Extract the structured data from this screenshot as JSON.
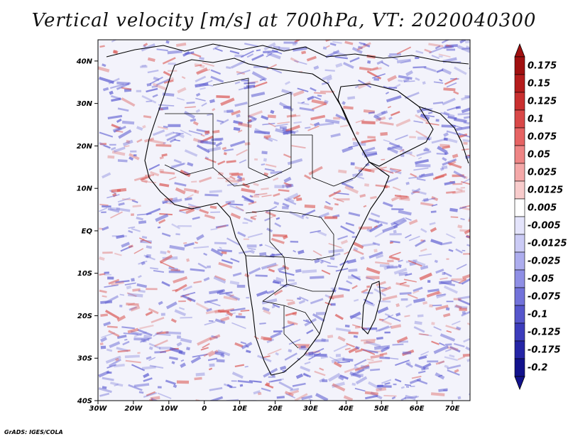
{
  "title": "Vertical velocity [m/s] at 700hPa, VT: 2020040300",
  "credit": "GrADS: IGES/COLA",
  "map": {
    "lon_range": [
      -30,
      75
    ],
    "lat_range": [
      -40,
      45
    ],
    "lat_ticks": [
      "40N",
      "30N",
      "20N",
      "10N",
      "EQ",
      "10S",
      "20S",
      "30S",
      "40S"
    ],
    "lon_ticks": [
      "30W",
      "20W",
      "10W",
      "0",
      "10E",
      "20E",
      "30E",
      "40E",
      "50E",
      "60E",
      "70E"
    ],
    "field_colors": {
      "ascent": "#d9534f",
      "descent": "#5a5ad0",
      "neutral": "#f3f3fb"
    }
  },
  "colorbar": {
    "labels": [
      "0.175",
      "0.15",
      "0.125",
      "0.1",
      "0.075",
      "0.05",
      "0.025",
      "0.0125",
      "0.005",
      "-0.005",
      "-0.0125",
      "-0.025",
      "-0.05",
      "-0.075",
      "-0.1",
      "-0.125",
      "-0.175",
      "-0.2"
    ],
    "colors": [
      "#a01010",
      "#b51c1c",
      "#c92f2f",
      "#d94848",
      "#e66363",
      "#ee8585",
      "#f4a8a8",
      "#f8cccc",
      "#ffffff",
      "#e4e4fb",
      "#cbcbf5",
      "#adadee",
      "#8f8fe5",
      "#7272da",
      "#5656cc",
      "#3c3cbc",
      "#2525a6",
      "#12128c"
    ]
  }
}
